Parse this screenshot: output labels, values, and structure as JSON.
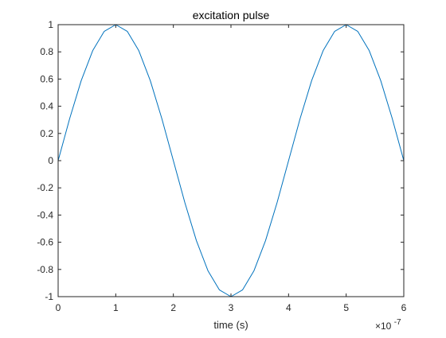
{
  "chart_data": {
    "type": "line",
    "title": "excitation pulse",
    "xlabel": "time (s)",
    "ylabel": "",
    "x_multiplier_label": "×10",
    "x_multiplier_exponent": "-7",
    "xlim": [
      0,
      6
    ],
    "ylim": [
      -1,
      1
    ],
    "x_ticks": [
      0,
      1,
      2,
      3,
      4,
      5,
      6
    ],
    "x_tick_labels": [
      "0",
      "1",
      "2",
      "3",
      "4",
      "5",
      "6"
    ],
    "y_ticks": [
      -1,
      -0.8,
      -0.6,
      -0.4,
      -0.2,
      0,
      0.2,
      0.4,
      0.6,
      0.8,
      1
    ],
    "y_tick_labels": [
      "-1",
      "-0.8",
      "-0.6",
      "-0.4",
      "-0.2",
      "0",
      "0.2",
      "0.4",
      "0.6",
      "0.8",
      "1"
    ],
    "grid": false,
    "series": [
      {
        "color": "#0072BD",
        "x": [
          0,
          0.2,
          0.4,
          0.6,
          0.8,
          1.0,
          1.2,
          1.4,
          1.6,
          1.8,
          2.0,
          2.2,
          2.4,
          2.6,
          2.8,
          3.0,
          3.2,
          3.4,
          3.6,
          3.8,
          4.0,
          4.2,
          4.4,
          4.6,
          4.8,
          5.0,
          5.2,
          5.4,
          5.6,
          5.8,
          6.0
        ],
        "y": [
          0,
          0.309,
          0.588,
          0.809,
          0.951,
          1.0,
          0.951,
          0.809,
          0.588,
          0.309,
          0,
          -0.309,
          -0.588,
          -0.809,
          -0.951,
          -1.0,
          -0.951,
          -0.809,
          -0.588,
          -0.309,
          0,
          0.309,
          0.588,
          0.809,
          0.951,
          1.0,
          0.951,
          0.809,
          0.588,
          0.309,
          0
        ]
      }
    ]
  }
}
